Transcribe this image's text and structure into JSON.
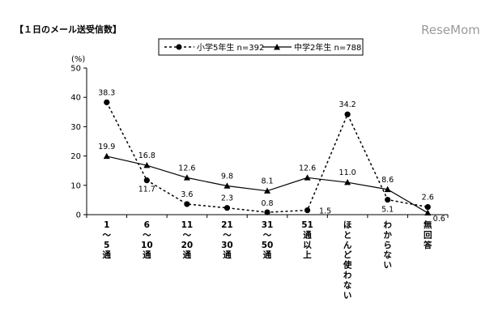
{
  "title": "【１日のメール送受信数】",
  "watermark": "ReseMom",
  "chart_data": {
    "type": "line",
    "ylabel": "(%)",
    "ylim": [
      0,
      50
    ],
    "yticks": [
      0,
      10,
      20,
      30,
      40,
      50
    ],
    "categories": [
      "1\n〜\n5\n通",
      "6\n〜\n10\n通",
      "11\n〜\n20\n通",
      "21\n〜\n30\n通",
      "31\n〜\n50\n通",
      "51\n通\n以\n上",
      "ほ\nと\nん\nど\n使\nわ\nな\nい",
      "わ\nか\nら\nな\nい",
      "無\n回\n答"
    ],
    "series": [
      {
        "name": "小学5年生 n=392",
        "values": [
          38.3,
          11.7,
          3.6,
          2.3,
          0.8,
          1.5,
          34.2,
          5.1,
          2.6
        ],
        "labels": [
          "38.3",
          "11.7",
          "3.6",
          "2.3",
          "0.8",
          "1.5",
          "34.2",
          "5.1",
          "2.6"
        ],
        "marker": "circle",
        "dash": true
      },
      {
        "name": "中学2年生 n=788",
        "values": [
          19.9,
          16.8,
          12.6,
          9.8,
          8.1,
          12.6,
          11.0,
          8.6,
          0.6
        ],
        "labels": [
          "19.9",
          "16.8",
          "12.6",
          "9.8",
          "8.1",
          "12.6",
          "11.0",
          "8.6",
          "0.6"
        ],
        "marker": "triangle",
        "dash": false
      }
    ],
    "legend_position": "top-center",
    "grid": false
  }
}
